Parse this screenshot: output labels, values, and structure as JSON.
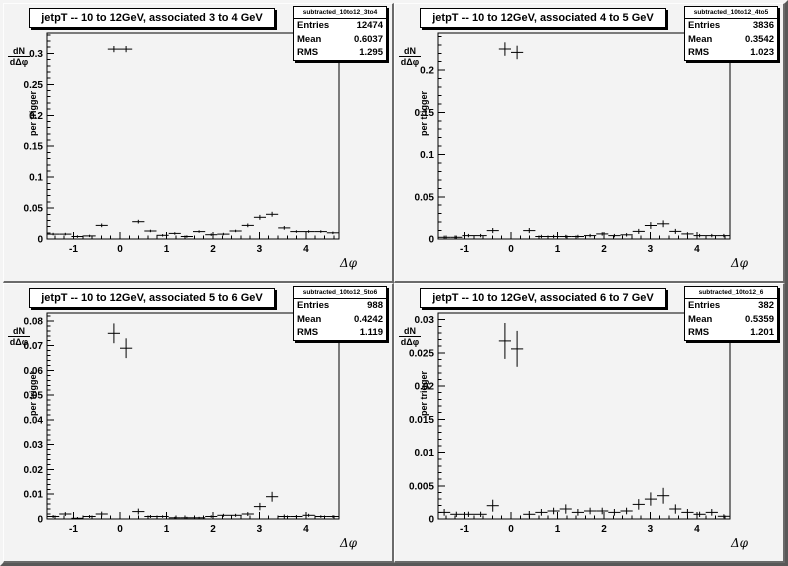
{
  "canvas": {
    "background": "#d4d4d4",
    "pad_background": "#f3f3f3",
    "line_color": "#000000",
    "box_background": "#ffffff"
  },
  "stats_labels": {
    "entries": "Entries",
    "mean": "Mean",
    "rms": "RMS"
  },
  "chart_data": [
    {
      "type": "scatter",
      "title": "jetpT -- 10 to 12GeV, associated 3 to 4 GeV",
      "stats": {
        "name": "subtracted_10to12_3to4",
        "entries": "12474",
        "mean": "0.6037",
        "rms": "1.295"
      },
      "xlabel": "Δφ",
      "ylabel_numerator": "dN",
      "ylabel_denominator": "dΔφ",
      "ylabel_rest": "per trigger",
      "legend": "none",
      "grid": false,
      "xlim": [
        -1.571,
        4.712
      ],
      "ylim": [
        0,
        0.333
      ],
      "xticks": [
        -1,
        0,
        1,
        2,
        3,
        4
      ],
      "yticks": [
        0,
        0.05,
        0.1,
        0.15,
        0.2,
        0.25,
        0.3
      ],
      "ytick_labels": [
        "0",
        "0.05",
        "0.1",
        "0.15",
        "0.2",
        "0.25",
        "0.3"
      ],
      "x_minor_step": 0.2,
      "y_minor_step": 0.01,
      "bin_half_width": 0.131,
      "x": [
        -1.44,
        -1.178,
        -0.916,
        -0.654,
        -0.393,
        -0.131,
        0.131,
        0.393,
        0.654,
        0.916,
        1.178,
        1.44,
        1.702,
        1.963,
        2.225,
        2.487,
        2.749,
        3.011,
        3.272,
        3.534,
        3.796,
        4.058,
        4.32,
        4.581
      ],
      "y": [
        0.008,
        0.008,
        0.004,
        0.005,
        0.022,
        0.307,
        0.307,
        0.028,
        0.013,
        0.006,
        0.009,
        0.004,
        0.012,
        0.007,
        0.008,
        0.013,
        0.022,
        0.035,
        0.04,
        0.018,
        0.012,
        0.012,
        0.012,
        0.01
      ],
      "ey": [
        0.002,
        0.002,
        0.002,
        0.002,
        0.003,
        0.005,
        0.005,
        0.003,
        0.002,
        0.002,
        0.002,
        0.002,
        0.002,
        0.002,
        0.002,
        0.002,
        0.003,
        0.004,
        0.004,
        0.003,
        0.002,
        0.002,
        0.002,
        0.002
      ]
    },
    {
      "type": "scatter",
      "title": "jetpT -- 10 to 12GeV, associated 4 to 5 GeV",
      "stats": {
        "name": "subtracted_10to12_4to5",
        "entries": "3836",
        "mean": "0.3542",
        "rms": "1.023"
      },
      "xlabel": "Δφ",
      "ylabel_numerator": "dN",
      "ylabel_denominator": "dΔφ",
      "ylabel_rest": "per trigger",
      "legend": "none",
      "grid": false,
      "xlim": [
        -1.571,
        4.712
      ],
      "ylim": [
        0,
        0.244
      ],
      "xticks": [
        -1,
        0,
        1,
        2,
        3,
        4
      ],
      "yticks": [
        0,
        0.05,
        0.1,
        0.15,
        0.2
      ],
      "ytick_labels": [
        "0",
        "0.05",
        "0.1",
        "0.15",
        "0.2"
      ],
      "x_minor_step": 0.2,
      "y_minor_step": 0.01,
      "bin_half_width": 0.131,
      "x": [
        -1.44,
        -1.178,
        -0.916,
        -0.654,
        -0.393,
        -0.131,
        0.131,
        0.393,
        0.654,
        0.916,
        1.178,
        1.44,
        1.702,
        1.963,
        2.225,
        2.487,
        2.749,
        3.011,
        3.272,
        3.534,
        3.796,
        4.058,
        4.32,
        4.581
      ],
      "y": [
        0.002,
        0.002,
        0.004,
        0.004,
        0.01,
        0.225,
        0.221,
        0.01,
        0.003,
        0.003,
        0.003,
        0.003,
        0.004,
        0.006,
        0.004,
        0.005,
        0.009,
        0.016,
        0.018,
        0.009,
        0.006,
        0.004,
        0.004,
        0.004
      ],
      "ey": [
        0.002,
        0.002,
        0.002,
        0.002,
        0.003,
        0.008,
        0.008,
        0.003,
        0.002,
        0.002,
        0.002,
        0.002,
        0.002,
        0.002,
        0.002,
        0.002,
        0.003,
        0.004,
        0.004,
        0.003,
        0.002,
        0.002,
        0.002,
        0.002
      ]
    },
    {
      "type": "scatter",
      "title": "jetpT -- 10 to 12GeV, associated 5 to 6 GeV",
      "stats": {
        "name": "subtracted_10to12_5to6",
        "entries": "988",
        "mean": "0.4242",
        "rms": "1.119"
      },
      "xlabel": "Δφ",
      "ylabel_numerator": "dN",
      "ylabel_denominator": "dΔφ",
      "ylabel_rest": "per trigger",
      "legend": "none",
      "grid": false,
      "xlim": [
        -1.571,
        4.712
      ],
      "ylim": [
        0,
        0.0832
      ],
      "xticks": [
        -1,
        0,
        1,
        2,
        3,
        4
      ],
      "yticks": [
        0,
        0.01,
        0.02,
        0.03,
        0.04,
        0.05,
        0.06,
        0.07,
        0.08
      ],
      "ytick_labels": [
        "0",
        "0.01",
        "0.02",
        "0.03",
        "0.04",
        "0.05",
        "0.06",
        "0.07",
        "0.08"
      ],
      "x_minor_step": 0.2,
      "y_minor_step": 0.002,
      "bin_half_width": 0.131,
      "x": [
        -1.44,
        -1.178,
        -0.916,
        -0.654,
        -0.393,
        -0.131,
        0.131,
        0.393,
        0.654,
        0.916,
        1.178,
        1.44,
        1.702,
        1.963,
        2.225,
        2.487,
        2.749,
        3.011,
        3.272,
        3.534,
        3.796,
        4.058,
        4.32,
        4.581
      ],
      "y": [
        0.001,
        0.002,
        0.0003,
        0.001,
        0.002,
        0.075,
        0.069,
        0.003,
        0.001,
        0.001,
        0.0005,
        0.0005,
        0.0005,
        0.001,
        0.0015,
        0.0015,
        0.002,
        0.005,
        0.009,
        0.001,
        0.001,
        0.0015,
        0.001,
        0.001
      ],
      "ey": [
        0.0006,
        0.0008,
        0.0005,
        0.0006,
        0.001,
        0.004,
        0.004,
        0.0012,
        0.0006,
        0.0005,
        0.0004,
        0.0004,
        0.0004,
        0.0005,
        0.0006,
        0.0006,
        0.0008,
        0.0015,
        0.002,
        0.0008,
        0.0006,
        0.0006,
        0.0005,
        0.0005
      ]
    },
    {
      "type": "scatter",
      "title": "jetpT -- 10 to 12GeV, associated 6 to 7 GeV",
      "stats": {
        "name": "subtracted_10to12_6",
        "entries": "382",
        "mean": "0.5359",
        "rms": "1.201"
      },
      "xlabel": "Δφ",
      "ylabel_numerator": "dN",
      "ylabel_denominator": "dΔφ",
      "ylabel_rest": "per trigger",
      "legend": "none",
      "grid": false,
      "xlim": [
        -1.571,
        4.712
      ],
      "ylim": [
        0,
        0.031
      ],
      "xticks": [
        -1,
        0,
        1,
        2,
        3,
        4
      ],
      "yticks": [
        0,
        0.005,
        0.01,
        0.015,
        0.02,
        0.025,
        0.03
      ],
      "ytick_labels": [
        "0",
        "0.005",
        "0.01",
        "0.015",
        "0.02",
        "0.025",
        "0.03"
      ],
      "x_minor_step": 0.2,
      "y_minor_step": 0.001,
      "bin_half_width": 0.131,
      "x": [
        -1.44,
        -1.178,
        -0.916,
        -0.654,
        -0.393,
        -0.131,
        0.131,
        0.393,
        0.654,
        0.916,
        1.178,
        1.44,
        1.702,
        1.963,
        2.225,
        2.487,
        2.749,
        3.011,
        3.272,
        3.534,
        3.796,
        4.058,
        4.32,
        4.581
      ],
      "y": [
        0.001,
        0.0007,
        0.0007,
        0.0007,
        0.002,
        0.0268,
        0.0256,
        0.0007,
        0.001,
        0.0012,
        0.0015,
        0.001,
        0.0012,
        0.0012,
        0.001,
        0.0012,
        0.0022,
        0.003,
        0.0035,
        0.0015,
        0.001,
        0.0007,
        0.001,
        0.0004
      ],
      "ey": [
        0.0005,
        0.0004,
        0.0004,
        0.0004,
        0.0009,
        0.0027,
        0.0027,
        0.0005,
        0.0005,
        0.0005,
        0.0007,
        0.0005,
        0.0005,
        0.0005,
        0.0005,
        0.0005,
        0.0008,
        0.001,
        0.0012,
        0.0007,
        0.0005,
        0.0004,
        0.0005,
        0.0003
      ]
    }
  ]
}
